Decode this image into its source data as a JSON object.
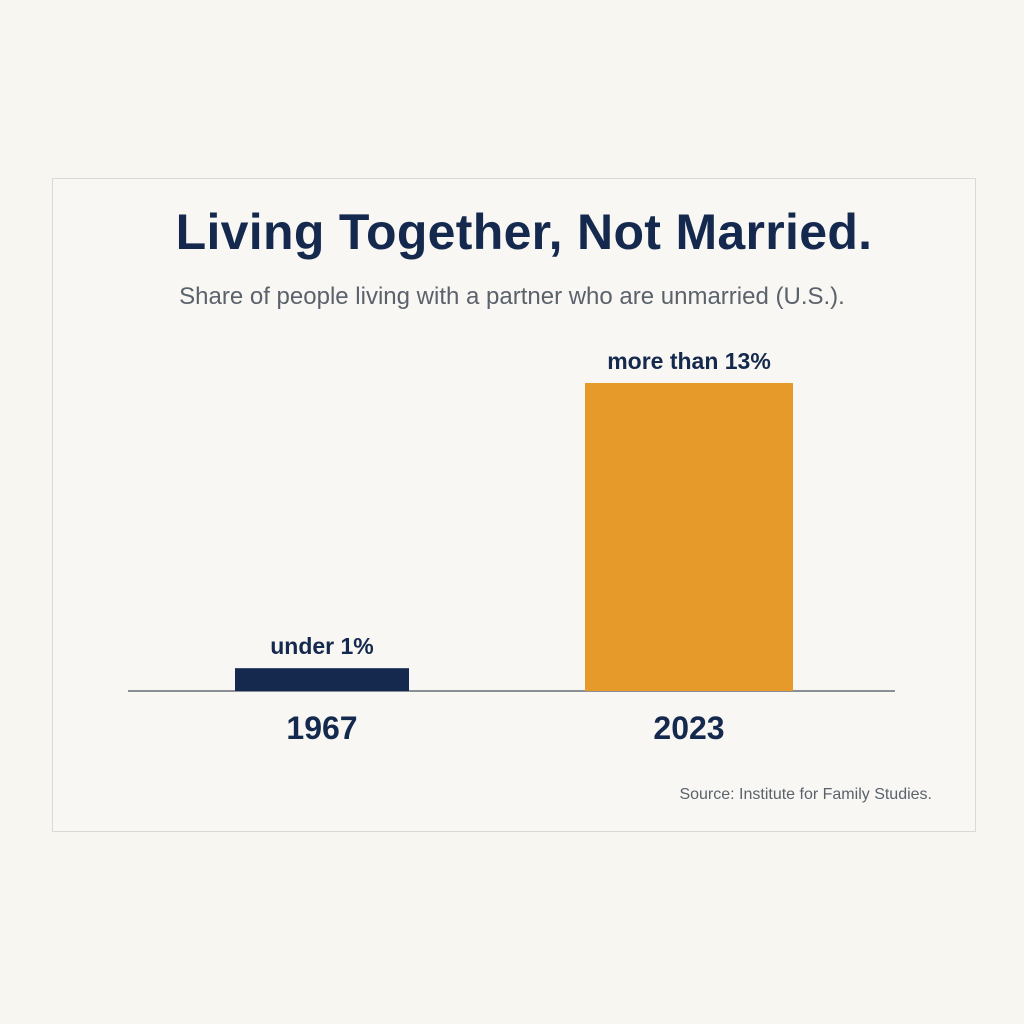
{
  "chart_data": {
    "type": "bar",
    "title": "Living Together, Not Married.",
    "subtitle": "Share of people living with a partner who are unmarried (U.S.).",
    "categories": [
      "1967",
      "2023"
    ],
    "values": [
      1,
      13.5
    ],
    "data_labels": [
      "under 1%",
      "more than 13%"
    ],
    "colors": [
      "#14294d",
      "#e69a2a"
    ],
    "ylabel": "",
    "xlabel": "",
    "ylim": [
      0,
      13.5
    ],
    "grid": false,
    "source": "Source: Institute for Family Studies."
  }
}
